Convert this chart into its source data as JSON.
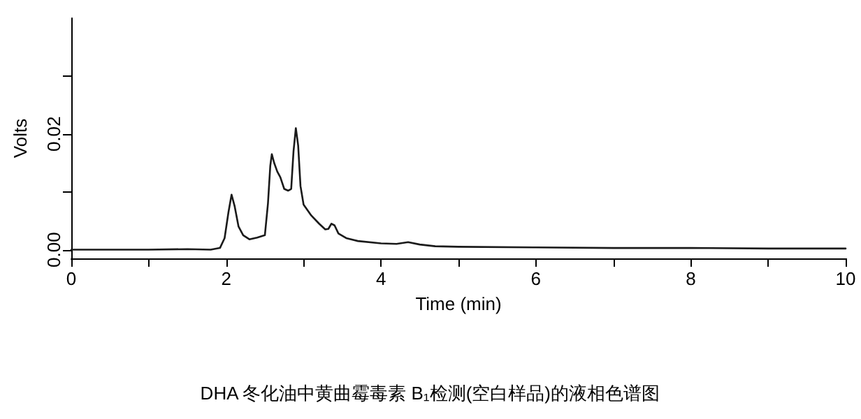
{
  "chart_data": {
    "type": "line",
    "xlabel": "Time (min)",
    "ylabel": "Volts",
    "annotations": [
      "DHA 冬化油中黄曲霉毒素 B₁检测(空白样品)的液相色谱图"
    ],
    "series": [
      {
        "color": "#1a1a1a",
        "x": [
          0,
          0.5,
          1,
          1.5,
          1.8,
          1.92,
          1.98,
          2.03,
          2.07,
          2.11,
          2.16,
          2.22,
          2.3,
          2.4,
          2.5,
          2.54,
          2.57,
          2.59,
          2.62,
          2.66,
          2.7,
          2.75,
          2.8,
          2.84,
          2.87,
          2.9,
          2.93,
          2.96,
          3.0,
          3.1,
          3.2,
          3.28,
          3.32,
          3.36,
          3.4,
          3.45,
          3.55,
          3.7,
          4.0,
          4.2,
          4.35,
          4.5,
          4.7,
          5,
          6,
          7,
          8,
          9,
          10
        ],
        "values": [
          0.0,
          0.0,
          0.0,
          0.0001,
          0.0,
          0.0003,
          0.002,
          0.0065,
          0.0095,
          0.0075,
          0.004,
          0.0025,
          0.0018,
          0.0021,
          0.0025,
          0.008,
          0.0145,
          0.0165,
          0.015,
          0.0135,
          0.0125,
          0.0105,
          0.0102,
          0.0105,
          0.017,
          0.021,
          0.018,
          0.011,
          0.0078,
          0.0059,
          0.0045,
          0.0035,
          0.0036,
          0.0045,
          0.0042,
          0.0028,
          0.002,
          0.0015,
          0.0011,
          0.001,
          0.0013,
          0.0009,
          0.0006,
          0.0005,
          0.0004,
          0.0003,
          0.0003,
          0.0002,
          0.0002
        ]
      }
    ],
    "xlim": [
      0,
      10
    ],
    "xticks": [
      0,
      {
        "value": 1,
        "label": null
      },
      2,
      {
        "value": 3,
        "label": null
      },
      4,
      {
        "value": 5,
        "label": null
      },
      6,
      {
        "value": 7,
        "label": null
      },
      8,
      {
        "value": 9,
        "label": null
      },
      10
    ],
    "ylim": [
      -0.0015,
      0.04
    ],
    "yticks": [
      {
        "value": 0,
        "label": "0.00"
      },
      {
        "value": 0.01,
        "label": null
      },
      {
        "value": 0.02,
        "label": "0.02"
      },
      {
        "value": 0.03,
        "label": null
      }
    ],
    "grid": false,
    "marker": "none",
    "line_style": "solid"
  }
}
